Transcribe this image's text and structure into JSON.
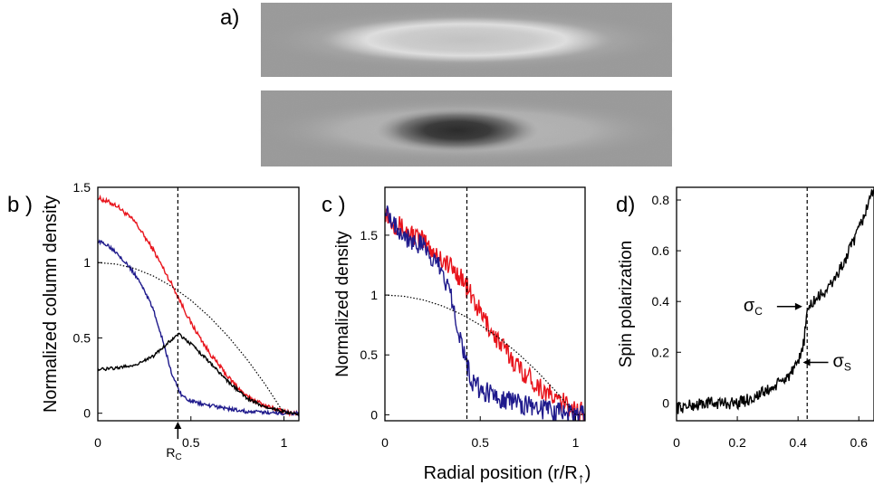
{
  "panel_labels": {
    "a": "a)",
    "b": "b )",
    "c": "c )",
    "d": "d)"
  },
  "images": [
    {
      "name": "density-image-top",
      "appearance": "grey background with bright elliptical ring"
    },
    {
      "name": "density-image-bottom",
      "appearance": "grey background with dark elliptical core"
    }
  ],
  "chart_data": [
    {
      "type": "line",
      "panel": "b",
      "ylabel": "Normalized column density",
      "xlabel": "",
      "xlim": [
        0,
        1.08
      ],
      "ylim": [
        -0.05,
        1.5
      ],
      "xticks": [
        0,
        0.5,
        1
      ],
      "xtick_labels": [
        "0",
        "0.5",
        "1"
      ],
      "yticks": [
        0,
        0.5,
        1,
        1.5
      ],
      "ytick_labels": [
        "0",
        "0.5",
        "1",
        "1.5"
      ],
      "vline": 0.43,
      "annotation": {
        "text": "R",
        "sub": "C",
        "x": 0.43
      },
      "colors": {
        "red": "#e8141c",
        "blue": "#1f1a8c",
        "black": "#000000"
      },
      "series": [
        {
          "color": "red",
          "noise": 0.015,
          "x": [
            0,
            0.1,
            0.2,
            0.3,
            0.4,
            0.5,
            0.6,
            0.7,
            0.8,
            0.9,
            1.0,
            1.05
          ],
          "y": [
            1.43,
            1.38,
            1.27,
            1.08,
            0.85,
            0.6,
            0.4,
            0.24,
            0.11,
            0.05,
            0.01,
            0.0
          ]
        },
        {
          "color": "blue",
          "noise": 0.012,
          "x": [
            0,
            0.05,
            0.1,
            0.15,
            0.2,
            0.25,
            0.3,
            0.35,
            0.4,
            0.45,
            0.5,
            0.6,
            0.7,
            0.8,
            1.0,
            1.05
          ],
          "y": [
            1.14,
            1.12,
            1.07,
            1.0,
            0.92,
            0.82,
            0.68,
            0.48,
            0.25,
            0.12,
            0.08,
            0.05,
            0.03,
            0.01,
            0.0,
            0.0
          ]
        },
        {
          "color": "black",
          "noise": 0.01,
          "x": [
            0,
            0.1,
            0.2,
            0.3,
            0.38,
            0.43,
            0.5,
            0.6,
            0.7,
            0.8,
            0.9,
            1.0,
            1.05
          ],
          "y": [
            0.29,
            0.3,
            0.32,
            0.38,
            0.47,
            0.53,
            0.46,
            0.34,
            0.21,
            0.1,
            0.04,
            0.01,
            0.0
          ]
        },
        {
          "color": "black",
          "dotted": true,
          "x": [
            0,
            0.1,
            0.2,
            0.3,
            0.4,
            0.5,
            0.6,
            0.7,
            0.8,
            0.9,
            1.0,
            1.05
          ],
          "y": [
            1.0,
            0.99,
            0.96,
            0.91,
            0.84,
            0.75,
            0.64,
            0.51,
            0.36,
            0.19,
            0.0,
            0.0
          ]
        }
      ]
    },
    {
      "type": "line",
      "panel": "c",
      "ylabel": "Normalized density",
      "xlabel": "Radial position (r/R",
      "xlabel_suffix": "↑",
      "xlabel_close": ")",
      "xlim": [
        0,
        1.05
      ],
      "ylim": [
        -0.05,
        1.9
      ],
      "xticks": [
        0,
        0.5,
        1
      ],
      "xtick_labels": [
        "0",
        "0.5",
        "1"
      ],
      "yticks": [
        0,
        0.5,
        1,
        1.5
      ],
      "ytick_labels": [
        "0",
        "0.5",
        "1",
        "1.5"
      ],
      "vline": 0.43,
      "colors": {
        "red": "#e8141c",
        "blue": "#1f1a8c",
        "black": "#000000"
      },
      "series": [
        {
          "color": "red",
          "noise": 0.09,
          "x": [
            0,
            0.05,
            0.1,
            0.2,
            0.3,
            0.4,
            0.5,
            0.6,
            0.7,
            0.8,
            0.9,
            1.0,
            1.05
          ],
          "y": [
            1.7,
            1.6,
            1.55,
            1.45,
            1.3,
            1.15,
            0.85,
            0.6,
            0.4,
            0.25,
            0.12,
            0.05,
            0.0
          ]
        },
        {
          "color": "blue",
          "noise": 0.09,
          "x": [
            0,
            0.05,
            0.1,
            0.2,
            0.3,
            0.35,
            0.4,
            0.45,
            0.5,
            0.6,
            0.7,
            0.8,
            1.0,
            1.05
          ],
          "y": [
            1.75,
            1.6,
            1.5,
            1.4,
            1.2,
            1.0,
            0.6,
            0.3,
            0.2,
            0.15,
            0.1,
            0.05,
            0.0,
            0.0
          ]
        },
        {
          "color": "black",
          "dotted": true,
          "x": [
            0,
            0.1,
            0.2,
            0.3,
            0.4,
            0.5,
            0.6,
            0.7,
            0.8,
            0.9,
            1.0,
            1.05
          ],
          "y": [
            1.0,
            0.99,
            0.96,
            0.91,
            0.84,
            0.75,
            0.64,
            0.51,
            0.36,
            0.19,
            0.0,
            0.0
          ]
        }
      ]
    },
    {
      "type": "line",
      "panel": "d",
      "ylabel": "Spin polarization",
      "xlabel": "",
      "xlim": [
        0,
        0.65
      ],
      "ylim": [
        -0.07,
        0.85
      ],
      "xticks": [
        0,
        0.2,
        0.4,
        0.6
      ],
      "xtick_labels": [
        "0",
        "0.2",
        "0.4",
        "0.6"
      ],
      "yticks": [
        0,
        0.2,
        0.4,
        0.6,
        0.8
      ],
      "ytick_labels": [
        "0",
        "0.2",
        "0.4",
        "0.6",
        "0.8"
      ],
      "vline": 0.43,
      "annotations": [
        {
          "text": "σ",
          "sub": "C",
          "x": 0.42,
          "y": 0.38
        },
        {
          "text": "σ",
          "sub": "S",
          "x": 0.41,
          "y": 0.16
        }
      ],
      "colors": {
        "black": "#000000"
      },
      "series": [
        {
          "color": "black",
          "noise": 0.025,
          "x": [
            0,
            0.1,
            0.2,
            0.25,
            0.3,
            0.33,
            0.36,
            0.38,
            0.4,
            0.42,
            0.43,
            0.45,
            0.5,
            0.55,
            0.6,
            0.65
          ],
          "y": [
            -0.02,
            0.0,
            0.0,
            0.02,
            0.05,
            0.07,
            0.1,
            0.12,
            0.15,
            0.25,
            0.36,
            0.4,
            0.45,
            0.55,
            0.68,
            0.85
          ]
        }
      ]
    }
  ]
}
